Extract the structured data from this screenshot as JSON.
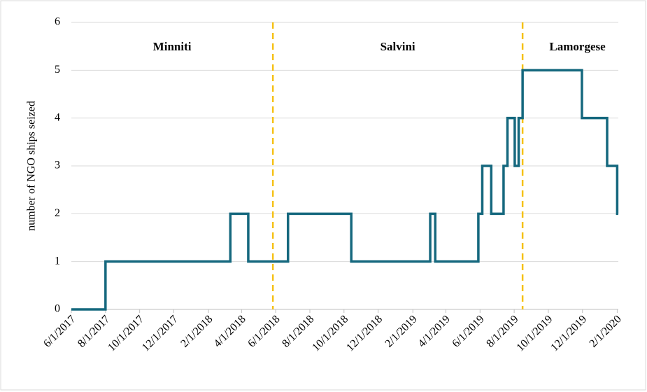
{
  "chart_data": {
    "type": "line",
    "step": true,
    "y_label": "number of NGO ships seized",
    "x": [
      "6/1/2017",
      "8/1/2017",
      "3/12/2018",
      "4/13/2018",
      "6/23/2018",
      "10/14/2018",
      "3/4/2019",
      "3/13/2019",
      "5/29/2019",
      "6/5/2019",
      "6/21/2019",
      "7/13/2019",
      "7/20/2019",
      "8/2/2019",
      "8/9/2019",
      "8/16/2019",
      "11/30/2019",
      "1/14/2020",
      "2/1/2020",
      "2/3/2020"
    ],
    "values": [
      0,
      1,
      2,
      1,
      2,
      1,
      2,
      1,
      2,
      3,
      2,
      3,
      4,
      3,
      4,
      5,
      4,
      3,
      2,
      2
    ],
    "color": "#15687e",
    "xlim": [
      "6/1/2017",
      "2/3/2020"
    ],
    "xticks": [
      "6/1/2017",
      "8/1/2017",
      "10/1/2017",
      "12/1/2017",
      "2/1/2018",
      "4/1/2018",
      "6/1/2018",
      "8/1/2018",
      "10/1/2018",
      "12/1/2018",
      "2/1/2019",
      "4/1/2019",
      "6/1/2019",
      "8/1/2019",
      "10/1/2019",
      "12/1/2019",
      "2/1/2020"
    ],
    "ylim": [
      0,
      6
    ],
    "yticks": [
      0,
      1,
      2,
      3,
      4,
      5,
      6
    ],
    "periods": {
      "labels": [
        "Minniti",
        "Salvini",
        "Lamorgese"
      ],
      "boundaries": [
        "5/27/2018",
        "8/16/2019"
      ],
      "color": "#f5c116"
    }
  }
}
